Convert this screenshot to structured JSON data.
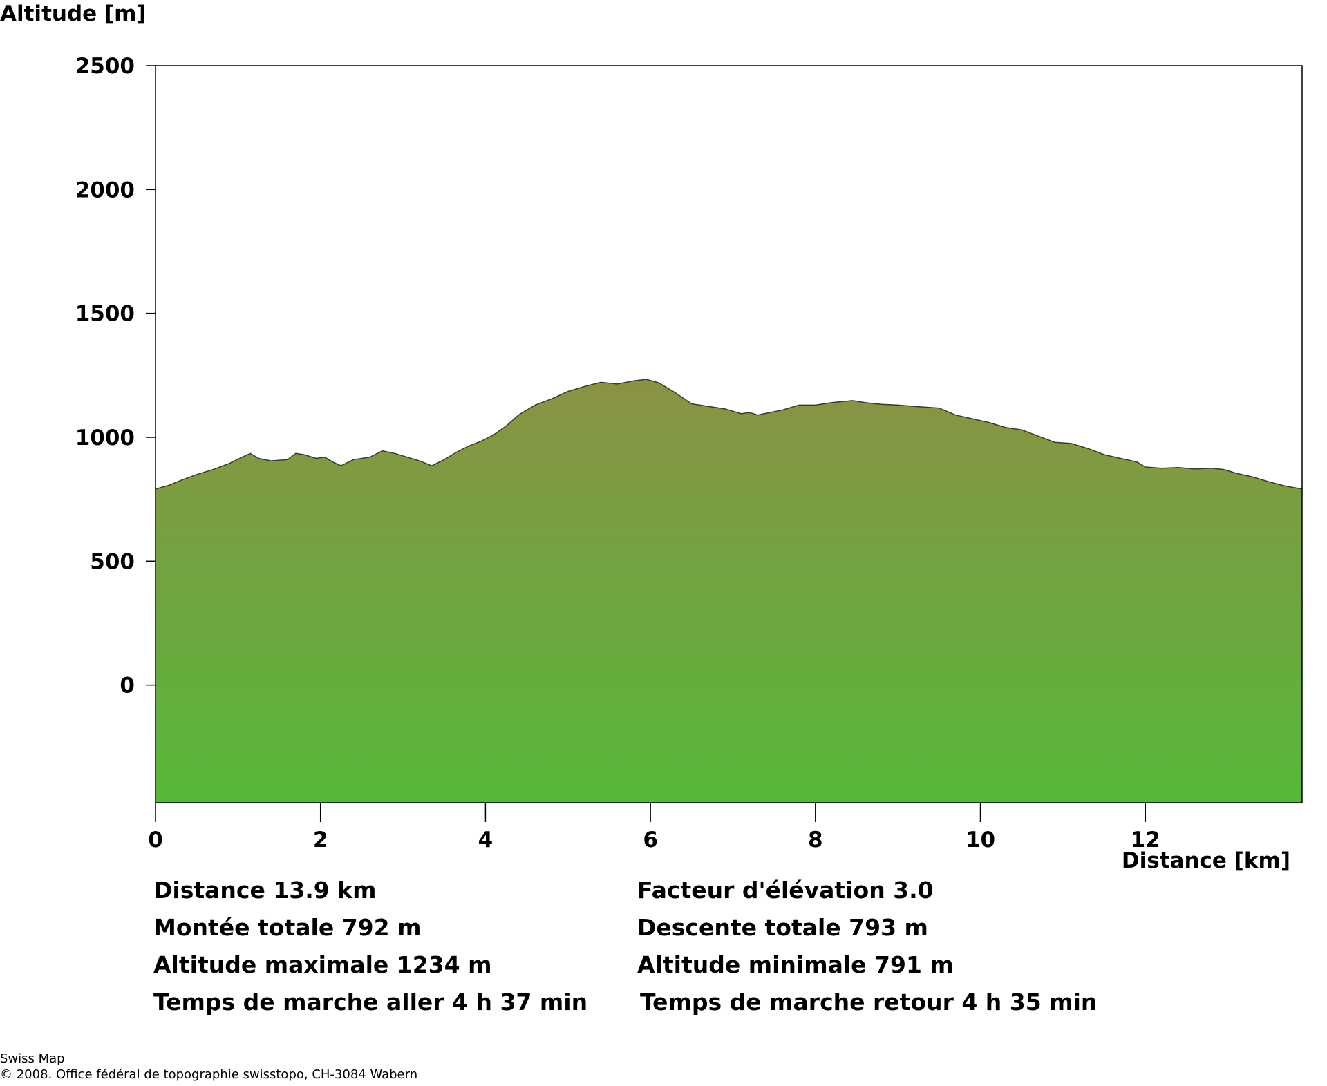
{
  "chart_data": {
    "type": "area",
    "ylabel": "Altitude [m]",
    "xlabel": "Distance [km]",
    "xlim": [
      0,
      13.9
    ],
    "ylim": [
      -475,
      2500
    ],
    "yticks": [
      "0",
      "500",
      "1000",
      "1500",
      "2000",
      "2500"
    ],
    "xticks": [
      "0",
      "2",
      "4",
      "6",
      "8",
      "10",
      "12"
    ],
    "grid": false,
    "fill_top_color": "#8a9244",
    "fill_bottom_color": "#56b83a",
    "outline_color": "#3a3a2a",
    "series": [
      {
        "x": [
          0,
          0.15,
          0.3,
          0.5,
          0.7,
          0.9,
          1.05,
          1.15,
          1.25,
          1.4,
          1.6,
          1.7,
          1.8,
          1.95,
          2.05,
          2.15,
          2.25,
          2.4,
          2.6,
          2.75,
          2.9,
          3.05,
          3.2,
          3.35,
          3.5,
          3.65,
          3.8,
          3.95,
          4.1,
          4.25,
          4.4,
          4.6,
          4.8,
          5.0,
          5.2,
          5.4,
          5.6,
          5.8,
          5.95,
          6.1,
          6.3,
          6.5,
          6.7,
          6.9,
          7.1,
          7.2,
          7.3,
          7.45,
          7.6,
          7.8,
          8.0,
          8.2,
          8.45,
          8.6,
          8.8,
          9.0,
          9.2,
          9.5,
          9.7,
          9.9,
          10.1,
          10.3,
          10.5,
          10.7,
          10.9,
          11.1,
          11.3,
          11.5,
          11.7,
          11.9,
          12.0,
          12.2,
          12.4,
          12.6,
          12.8,
          12.95,
          13.1,
          13.3,
          13.5,
          13.7,
          13.9
        ],
        "y": [
          791,
          805,
          825,
          850,
          870,
          895,
          920,
          935,
          915,
          905,
          910,
          935,
          930,
          915,
          920,
          900,
          885,
          910,
          920,
          945,
          935,
          920,
          905,
          885,
          910,
          940,
          965,
          985,
          1010,
          1045,
          1090,
          1130,
          1155,
          1185,
          1205,
          1222,
          1215,
          1228,
          1234,
          1220,
          1180,
          1135,
          1125,
          1115,
          1095,
          1100,
          1090,
          1100,
          1110,
          1130,
          1130,
          1140,
          1148,
          1140,
          1133,
          1130,
          1125,
          1118,
          1090,
          1075,
          1060,
          1040,
          1030,
          1005,
          980,
          975,
          955,
          930,
          915,
          900,
          880,
          875,
          878,
          872,
          875,
          870,
          855,
          840,
          820,
          803,
          791
        ]
      }
    ]
  },
  "stats": {
    "left": [
      "Distance 13.9 km",
      "Montée totale  792 m",
      "Altitude maximale  1234 m",
      "Temps de marche aller  4 h 37 min"
    ],
    "right": [
      "Facteur d'élévation 3.0",
      "Descente totale  793 m",
      "Altitude minimale  791 m",
      "Temps de marche retour  4 h 35 min"
    ]
  },
  "footer": {
    "line1": "Swiss Map",
    "line2": "© 2008. Office fédéral de topographie swisstopo, CH-3084 Wabern"
  }
}
